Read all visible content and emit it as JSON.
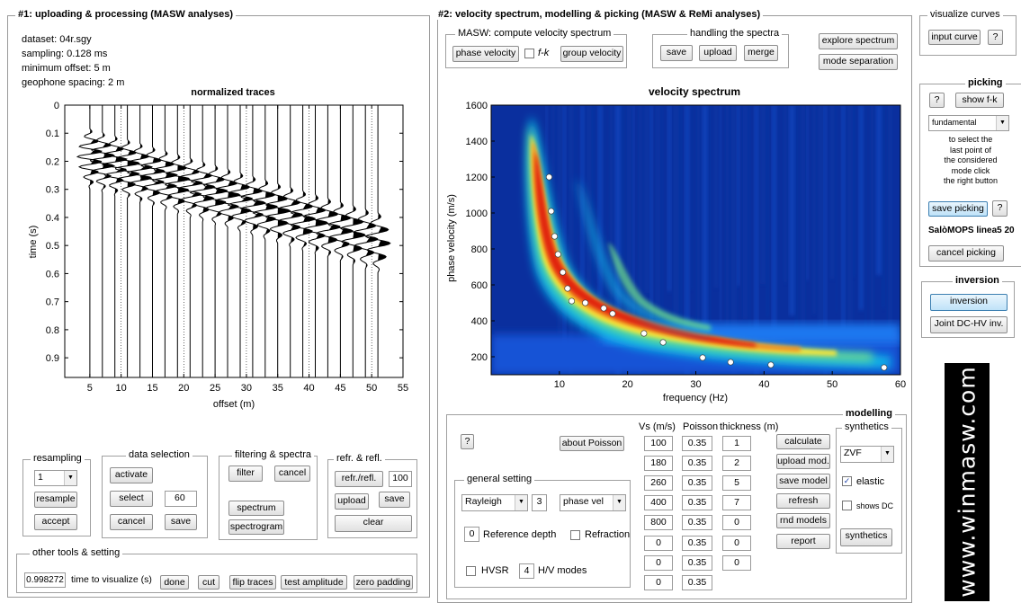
{
  "panel1": {
    "title": "#1: uploading & processing (MASW analyses)",
    "info": [
      "dataset: 04r.sgy",
      "sampling: 0.128 ms",
      "minimum offset: 5 m",
      "geophone spacing: 2 m"
    ],
    "plot": {
      "title": "normalized traces",
      "xlabel": "offset (m)",
      "ylabel": "time (s)",
      "xticks": [
        "5",
        "10",
        "15",
        "20",
        "25",
        "30",
        "35",
        "40",
        "45",
        "50",
        "55"
      ],
      "yticks": [
        "0",
        "0.1",
        "0.2",
        "0.3",
        "0.4",
        "0.5",
        "0.6",
        "0.7",
        "0.8",
        "0.9"
      ]
    }
  },
  "resampling": {
    "title": "resampling",
    "value": "1",
    "resample": "resample",
    "accept": "accept"
  },
  "data_selection": {
    "title": "data selection",
    "activate": "activate",
    "select": "select",
    "cancel": "cancel",
    "save": "save",
    "value": "60"
  },
  "filtering": {
    "title": "filtering & spectra",
    "filter": "filter",
    "cancel": "cancel",
    "spectrum": "spectrum",
    "spectrogram": "spectrogram"
  },
  "refr": {
    "title": "refr. & refl.",
    "refr_btn": "refr./refl.",
    "value": "100",
    "upload": "upload",
    "save": "save",
    "clear": "clear"
  },
  "other_tools": {
    "title": "other tools & setting",
    "value": "0.998272",
    "label": "time to visualize (s)",
    "done": "done",
    "cut": "cut",
    "flip": "flip traces",
    "test": "test amplitude",
    "zero": "zero padding"
  },
  "panel2": {
    "title": "#2: velocity spectrum, modelling & picking (MASW & ReMi analyses)",
    "masw_title": "MASW: compute velocity spectrum",
    "phase_velocity": "phase velocity",
    "fk": "f-k",
    "group_velocity": "group velocity",
    "handling_title": "handling the spectra",
    "save": "save",
    "upload": "upload",
    "merge": "merge",
    "explore": "explore spectrum",
    "mode_sep": "mode separation"
  },
  "chart_data": {
    "type": "heatmap",
    "title": "velocity spectrum",
    "xlabel": "frequency (Hz)",
    "ylabel": "phase velocity (m/s)",
    "xlim": [
      0,
      60
    ],
    "ylim": [
      100,
      1600
    ],
    "xticks": [
      "10",
      "20",
      "30",
      "40",
      "50",
      "60"
    ],
    "yticks": [
      "200",
      "400",
      "600",
      "800",
      "1000",
      "1200",
      "1400",
      "1600"
    ],
    "picks": {
      "x": [
        8.5,
        8.8,
        9.3,
        9.8,
        10.5,
        11.2,
        11.8,
        13.8,
        16.5,
        17.8,
        22.4,
        25.2,
        31.0,
        35.1,
        41.0,
        57.6
      ],
      "y": [
        1200,
        1010,
        870,
        770,
        670,
        580,
        510,
        500,
        470,
        440,
        330,
        280,
        195,
        170,
        155,
        140
      ]
    }
  },
  "modelling": {
    "title": "modelling",
    "help": "?",
    "about": "about Poisson",
    "col_vs": "Vs (m/s)",
    "col_poisson": "Poisson",
    "col_thick": "thickness (m)",
    "vs": [
      "100",
      "180",
      "260",
      "400",
      "800",
      "0",
      "0",
      "0"
    ],
    "poisson": [
      "0.35",
      "0.35",
      "0.35",
      "0.35",
      "0.35",
      "0.35",
      "0.35",
      "0.35"
    ],
    "thickness": [
      "1",
      "2",
      "5",
      "7",
      "0",
      "0",
      "0"
    ],
    "general_title": "general setting",
    "wave": "Rayleigh",
    "modes": "3",
    "vel_type": "phase vel",
    "ref_depth_value": "0",
    "ref_depth": "Reference depth",
    "refraction": "Refraction",
    "hvsr": "HVSR",
    "hv_value": "4",
    "hv_modes": "H/V modes",
    "calculate": "calculate",
    "upload_mod": "upload mod.",
    "save_model": "save model",
    "refresh": "refresh",
    "rnd_models": "rnd models",
    "report": "report",
    "synthetics_title": "synthetics",
    "zvf": "ZVF",
    "elastic": "elastic",
    "shows_dc": "shows DC",
    "synthetics_btn": "synthetics"
  },
  "visualize": {
    "title": "visualize curves",
    "input_curve": "input curve",
    "help": "?"
  },
  "picking": {
    "title": "picking",
    "help": "?",
    "show_fk": "show f-k",
    "mode": "fundamental",
    "instructions": [
      "to select the",
      "last point of",
      "the considered",
      "mode click",
      "the right button"
    ],
    "save_picking": "save picking",
    "help2": "?",
    "dataset_name": "SalòMOPS linea5 20",
    "cancel_picking": "cancel picking"
  },
  "inversion": {
    "title": "inversion",
    "inversion": "inversion",
    "joint": "Joint DC-HV inv."
  },
  "brand": {
    "text": "www.winmasw.com"
  }
}
